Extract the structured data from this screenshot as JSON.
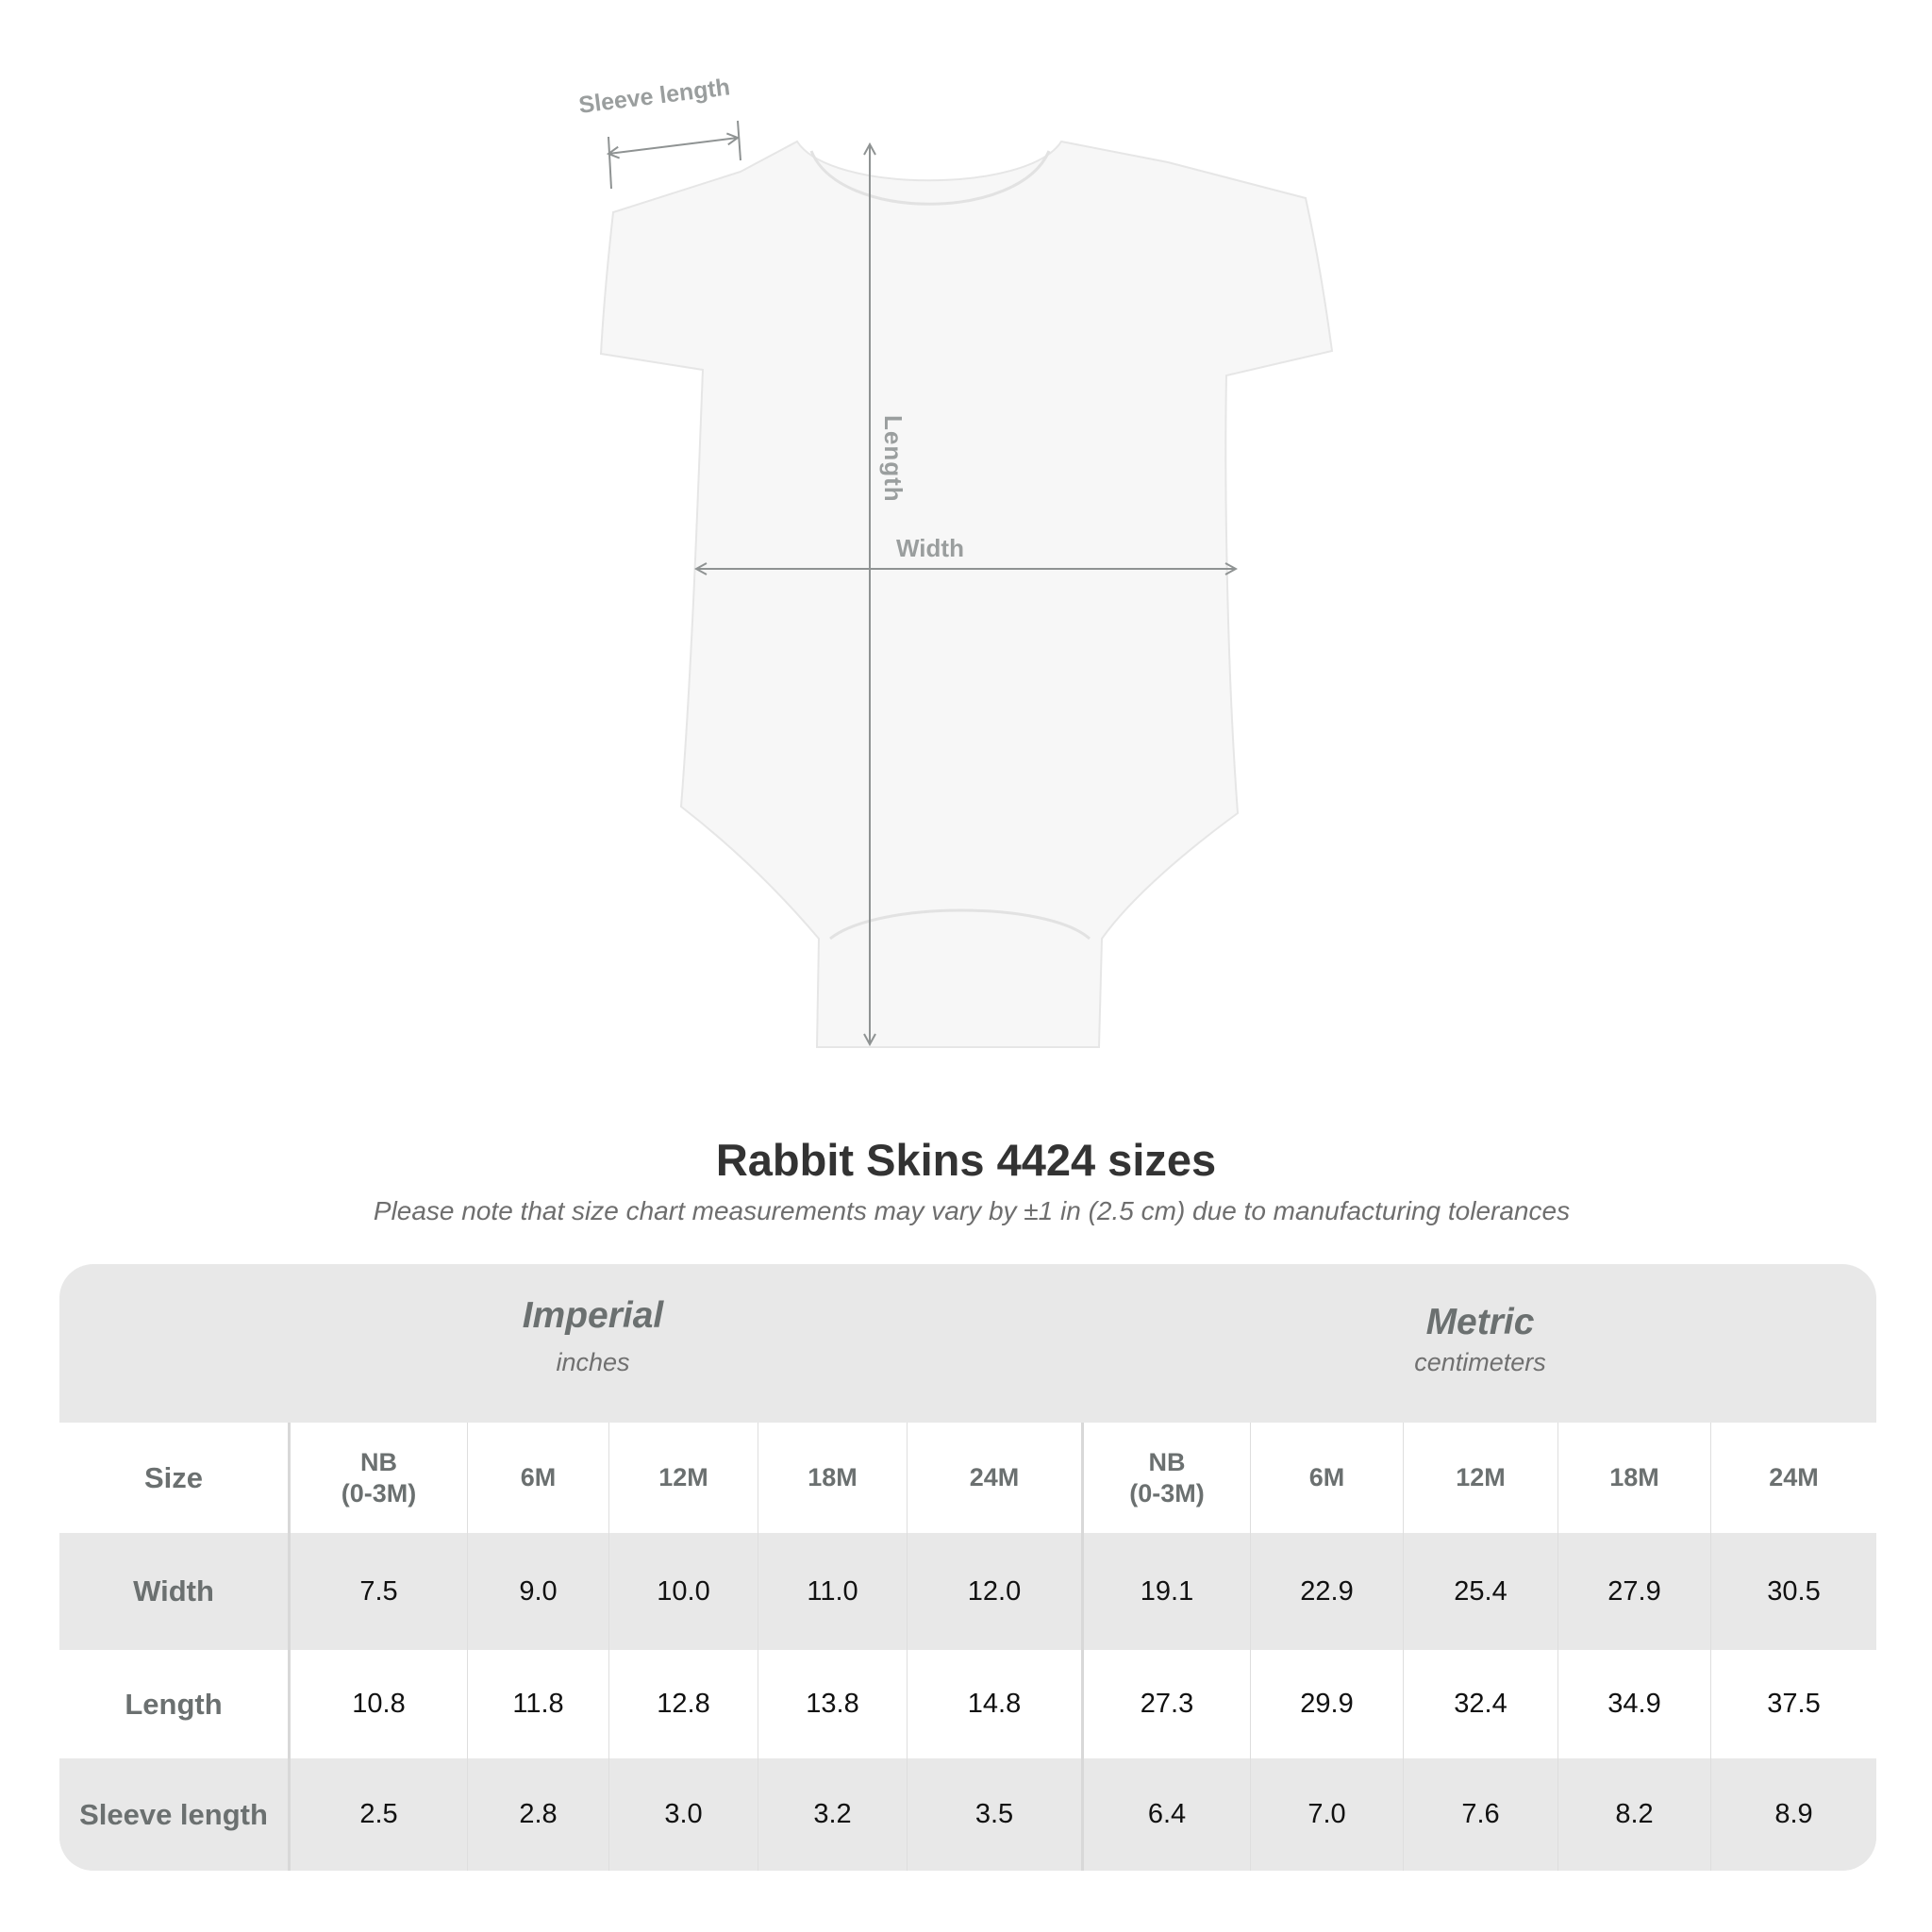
{
  "diagram": {
    "sleeve_label": "Sleeve length",
    "length_label": "Length",
    "width_label": "Width"
  },
  "title": "Rabbit Skins 4424 sizes",
  "subtitle": "Please note that size chart measurements may vary by ±1 in (2.5 cm) due to manufacturing tolerances",
  "table": {
    "imperial": {
      "label": "Imperial",
      "unit": "inches"
    },
    "metric": {
      "label": "Metric",
      "unit": "centimeters"
    },
    "size_label": "Size",
    "sizes": [
      "NB\n(0-3M)",
      "6M",
      "12M",
      "18M",
      "24M"
    ],
    "rows": [
      {
        "label": "Width",
        "imperial": [
          "7.5",
          "9.0",
          "10.0",
          "11.0",
          "12.0"
        ],
        "metric": [
          "19.1",
          "22.9",
          "25.4",
          "27.9",
          "30.5"
        ]
      },
      {
        "label": "Length",
        "imperial": [
          "10.8",
          "11.8",
          "12.8",
          "13.8",
          "14.8"
        ],
        "metric": [
          "27.3",
          "29.9",
          "32.4",
          "34.9",
          "37.5"
        ]
      },
      {
        "label": "Sleeve length",
        "imperial": [
          "2.5",
          "2.8",
          "3.0",
          "3.2",
          "3.5"
        ],
        "metric": [
          "6.4",
          "7.0",
          "7.6",
          "8.2",
          "8.9"
        ]
      }
    ]
  }
}
